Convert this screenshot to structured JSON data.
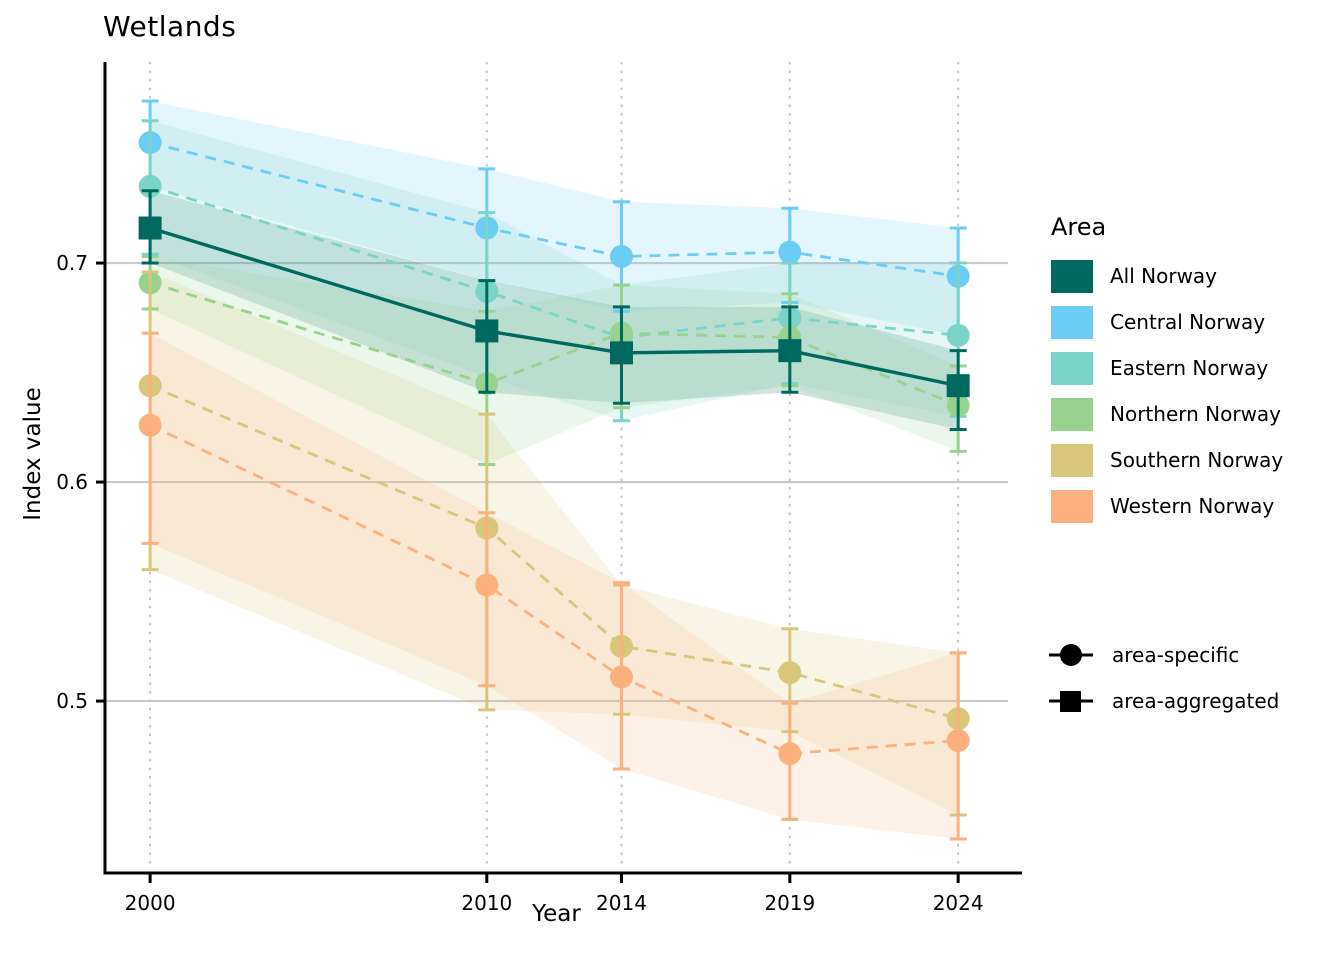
{
  "chart_data": {
    "type": "line",
    "title": "Wetlands",
    "xlabel": "Year",
    "ylabel": "Index value",
    "x": [
      2000,
      2010,
      2014,
      2019,
      2024
    ],
    "xticks": [
      2000,
      2010,
      2014,
      2019,
      2024
    ],
    "yticks": [
      0.5,
      0.6,
      0.7
    ],
    "xlim": [
      1998.66,
      2025.48
    ],
    "ylim": [
      0.4215,
      0.7918
    ],
    "grid": {
      "horizontal": "solid",
      "vertical": "dotted",
      "color": "#cacaca"
    },
    "legend_title": "Area",
    "legend_position": "right",
    "marker_legend": [
      {
        "label": "area-specific",
        "marker": "circle"
      },
      {
        "label": "area-aggregated",
        "marker": "square"
      }
    ],
    "series": [
      {
        "name": "All Norway",
        "color": "#00695f",
        "marker": "square",
        "line_style": "solid",
        "role": "area-aggregated",
        "values": [
          0.716,
          0.669,
          0.659,
          0.66,
          0.644
        ],
        "ci_low": [
          0.7,
          0.641,
          0.636,
          0.641,
          0.624
        ],
        "ci_high": [
          0.733,
          0.692,
          0.68,
          0.68,
          0.66
        ]
      },
      {
        "name": "Central Norway",
        "color": "#6bcdf5",
        "marker": "circle",
        "line_style": "dashed",
        "role": "area-specific",
        "values": [
          0.755,
          0.716,
          0.703,
          0.705,
          0.694
        ],
        "ci_low": [
          0.735,
          0.692,
          0.678,
          0.682,
          0.667
        ],
        "ci_high": [
          0.774,
          0.743,
          0.728,
          0.725,
          0.716
        ]
      },
      {
        "name": "Eastern Norway",
        "color": "#7ad4c7",
        "marker": "circle",
        "line_style": "dashed",
        "role": "area-specific",
        "values": [
          0.735,
          0.687,
          0.666,
          0.675,
          0.667
        ],
        "ci_low": [
          0.704,
          0.648,
          0.628,
          0.645,
          0.63
        ],
        "ci_high": [
          0.765,
          0.723,
          0.69,
          0.7,
          0.7
        ]
      },
      {
        "name": "Northern Norway",
        "color": "#98d38e",
        "marker": "circle",
        "line_style": "dashed",
        "role": "area-specific",
        "values": [
          0.691,
          0.645,
          0.668,
          0.666,
          0.635
        ],
        "ci_low": [
          0.679,
          0.608,
          0.634,
          0.644,
          0.614
        ],
        "ci_high": [
          0.703,
          0.678,
          0.69,
          0.686,
          0.653
        ]
      },
      {
        "name": "Southern Norway",
        "color": "#d8c77a",
        "marker": "circle",
        "line_style": "dashed",
        "role": "area-specific",
        "values": [
          0.644,
          0.579,
          0.525,
          0.513,
          0.492
        ],
        "ci_low": [
          0.56,
          0.496,
          0.494,
          0.486,
          0.448
        ],
        "ci_high": [
          0.696,
          0.631,
          0.553,
          0.533,
          0.522
        ]
      },
      {
        "name": "Western Norway",
        "color": "#fcb07e",
        "marker": "circle",
        "line_style": "dashed",
        "role": "area-specific",
        "values": [
          0.626,
          0.553,
          0.511,
          0.476,
          0.482
        ],
        "ci_low": [
          0.572,
          0.507,
          0.469,
          0.446,
          0.437
        ],
        "ci_high": [
          0.668,
          0.586,
          0.554,
          0.499,
          0.522
        ]
      }
    ]
  }
}
